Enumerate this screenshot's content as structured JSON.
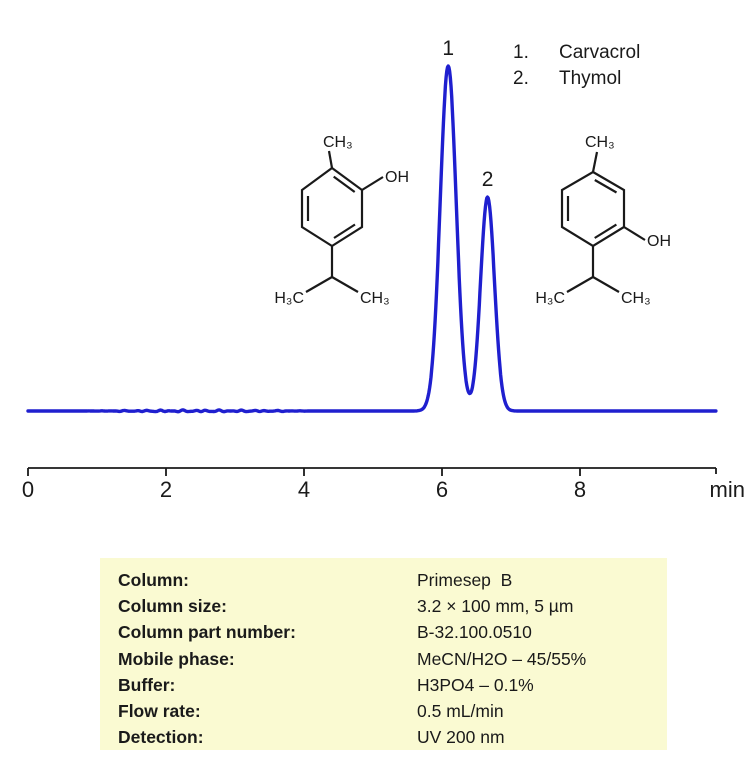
{
  "chart_data": {
    "type": "line",
    "title": "Chromatogram of carvacrol and thymol separation",
    "x_axis": {
      "unit_label": "min",
      "ticks": [
        "0",
        "2",
        "4",
        "6",
        "8"
      ],
      "range": [
        0,
        10
      ]
    },
    "y_axis": {
      "label": "",
      "visible": false
    },
    "line_color": "#1F1FCF",
    "baseline_rel": 0,
    "peaks": [
      {
        "id": "1",
        "name": "Carvacrol",
        "rt_min": 6.09,
        "sigma_min": 0.116,
        "rel_height": 1.0
      },
      {
        "id": "2",
        "name": "Thymol",
        "rt_min": 6.66,
        "sigma_min": 0.101,
        "rel_height": 0.62
      }
    ]
  },
  "legend": {
    "items": [
      {
        "number": "1.",
        "name": "Carvacrol"
      },
      {
        "number": "2.",
        "name": "Thymol"
      }
    ]
  },
  "structures": {
    "carvacrol": {
      "name": "Carvacrol",
      "labels": {
        "methyl": "CH₃",
        "hydroxyl": "OH",
        "iso_left": "H₃C",
        "iso_right": "CH₃"
      }
    },
    "thymol": {
      "name": "Thymol",
      "labels": {
        "methyl": "CH₃",
        "hydroxyl": "OH",
        "iso_left": "H₃C",
        "iso_right": "CH₃"
      }
    }
  },
  "info_panel": {
    "background": "#FAFAD2",
    "rows": [
      {
        "label": "Column:",
        "value": "Primesep  B"
      },
      {
        "label": "Column size:",
        "value": "3.2 × 100 mm, 5 µm"
      },
      {
        "label": "Column part number:",
        "value": "B-32.100.0510"
      },
      {
        "label": "Mobile phase:",
        "value": "MeCN/H2O – 45/55%"
      },
      {
        "label": "Buffer:",
        "value": "H3PO4 – 0.1%"
      },
      {
        "label": "Flow rate:",
        "value": "0.5 mL/min"
      },
      {
        "label": "Detection:",
        "value": "UV 200 nm"
      }
    ]
  }
}
